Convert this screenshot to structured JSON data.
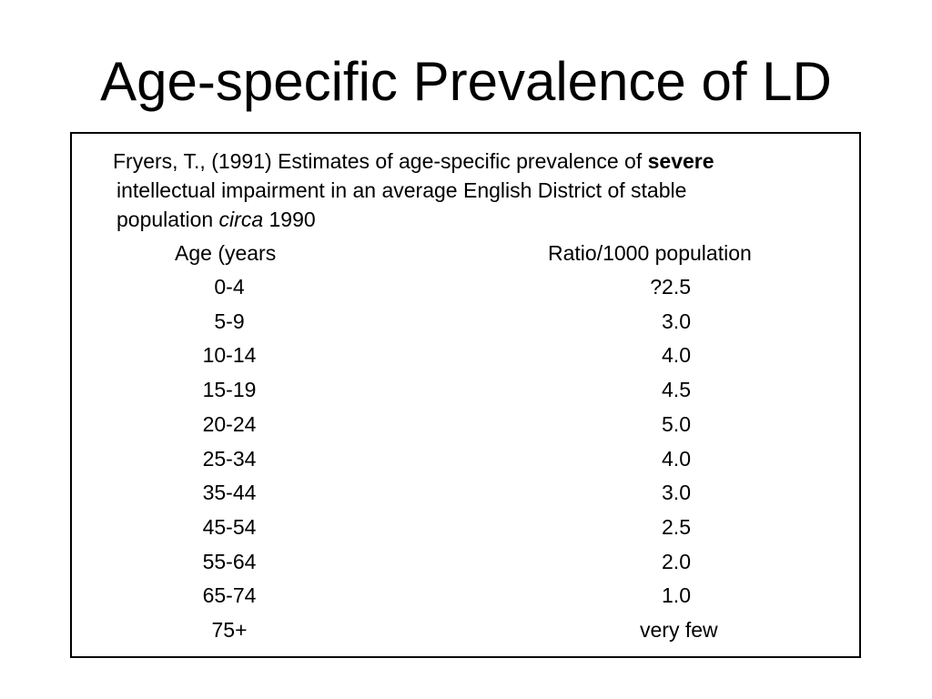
{
  "slide": {
    "title": "Age-specific Prevalence of LD"
  },
  "source": {
    "line1_prefix": "Fryers, T., (1991) Estimates of age-specific prevalence of ",
    "line1_bold": "severe",
    "line2": "intellectual impairment in an average English District of stable",
    "line3_prefix": "population ",
    "line3_italic": "circa",
    "line3_suffix": " 1990"
  },
  "table": {
    "headers": {
      "age": "Age (years",
      "ratio": "Ratio/1000 population"
    },
    "rows": [
      {
        "age": "0-4",
        "ratio": "?2.5"
      },
      {
        "age": "5-9",
        "ratio": "3.0"
      },
      {
        "age": "10-14",
        "ratio": "4.0"
      },
      {
        "age": "15-19",
        "ratio": "4.5"
      },
      {
        "age": "20-24",
        "ratio": "5.0"
      },
      {
        "age": "25-34",
        "ratio": "4.0"
      },
      {
        "age": "35-44",
        "ratio": "3.0"
      },
      {
        "age": "45-54",
        "ratio": "2.5"
      },
      {
        "age": "55-64",
        "ratio": "2.0"
      },
      {
        "age": "65-74",
        "ratio": "1.0"
      },
      {
        "age": "75+",
        "ratio": "very few"
      }
    ]
  }
}
